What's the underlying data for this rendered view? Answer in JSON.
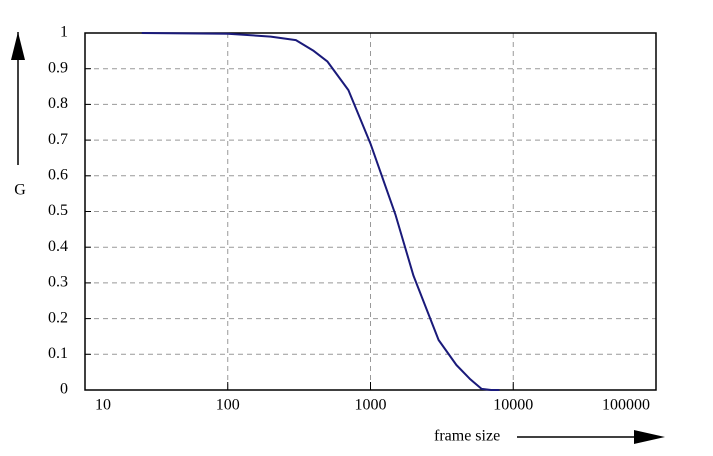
{
  "chart_data": {
    "type": "line",
    "x_label": "frame size",
    "y_label": "G",
    "xscale": "log",
    "x": [
      25,
      100,
      200,
      300,
      400,
      500,
      700,
      1000,
      1500,
      2000,
      3000,
      4000,
      5000,
      6000,
      7000,
      8000
    ],
    "values": [
      1,
      0.998,
      0.99,
      0.98,
      0.95,
      0.92,
      0.84,
      0.69,
      0.49,
      0.32,
      0.14,
      0.07,
      0.03,
      0.003,
      0,
      0
    ],
    "color": "#1a1a7a",
    "xlim": [
      10,
      100000
    ],
    "xticks": [
      10,
      100,
      1000,
      10000,
      100000
    ],
    "ylim": [
      0,
      1
    ],
    "yticks": [
      0,
      0.1,
      0.2,
      0.3,
      0.4,
      0.5,
      0.6,
      0.7,
      0.8,
      0.9,
      1
    ],
    "grid": true
  }
}
